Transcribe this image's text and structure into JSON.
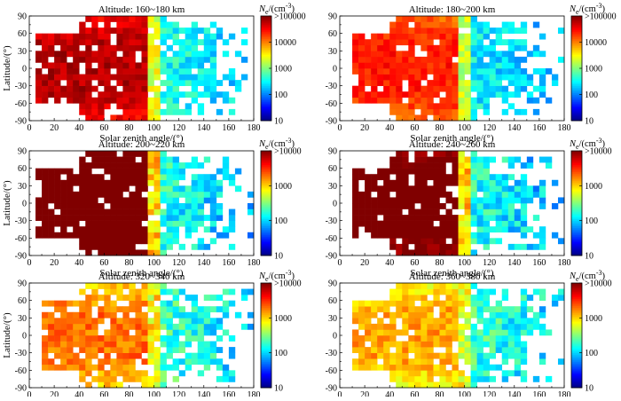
{
  "figure": {
    "panels": [
      {
        "title": "Altitude: 160~180 km",
        "colorbar_ticks": [
          ">100000",
          "10000",
          "1000",
          "100",
          "10"
        ],
        "max_decade": 5
      },
      {
        "title": "Altitude: 180~200 km",
        "colorbar_ticks": [
          ">100000",
          "10000",
          "1000",
          "100",
          "10"
        ],
        "max_decade": 5
      },
      {
        "title": "Altitude: 200~220 km",
        "colorbar_ticks": [
          ">10000",
          "1000",
          "100",
          "10"
        ],
        "max_decade": 4
      },
      {
        "title": "Altitude: 240~260 km",
        "colorbar_ticks": [
          ">10000",
          "1000",
          "100",
          "10"
        ],
        "max_decade": 4
      },
      {
        "title": "Altitude: 320~340 km",
        "colorbar_ticks": [
          ">10000",
          "1000",
          "100",
          "10"
        ],
        "max_decade": 4
      },
      {
        "title": "Altitude: 360~380 km",
        "colorbar_ticks": [
          ">10000",
          "1000",
          "100",
          "10"
        ],
        "max_decade": 4
      }
    ],
    "xlabel": "Solar zenith angle/(°)",
    "ylabel": "Latitude/(°)",
    "colorbar_label_main": "N",
    "colorbar_label_sub": "e",
    "colorbar_label_unit": "/(cm",
    "colorbar_label_exp": "-3",
    "colorbar_label_close": ")"
  },
  "chart_data": {
    "type": "heatmap",
    "x_range": [
      0,
      180
    ],
    "y_range": [
      -90,
      90
    ],
    "x_ticks": [
      0,
      20,
      40,
      60,
      80,
      100,
      120,
      140,
      160,
      180
    ],
    "y_ticks": [
      -90,
      -60,
      -30,
      0,
      30,
      60,
      90
    ],
    "x_bin": 5,
    "y_bin": 10,
    "color_scale": "jet, log10(Ne), from 10 to max",
    "note": "Values are approximate log10(Ne / cm^-3) read from the color of the binned cells."
  }
}
